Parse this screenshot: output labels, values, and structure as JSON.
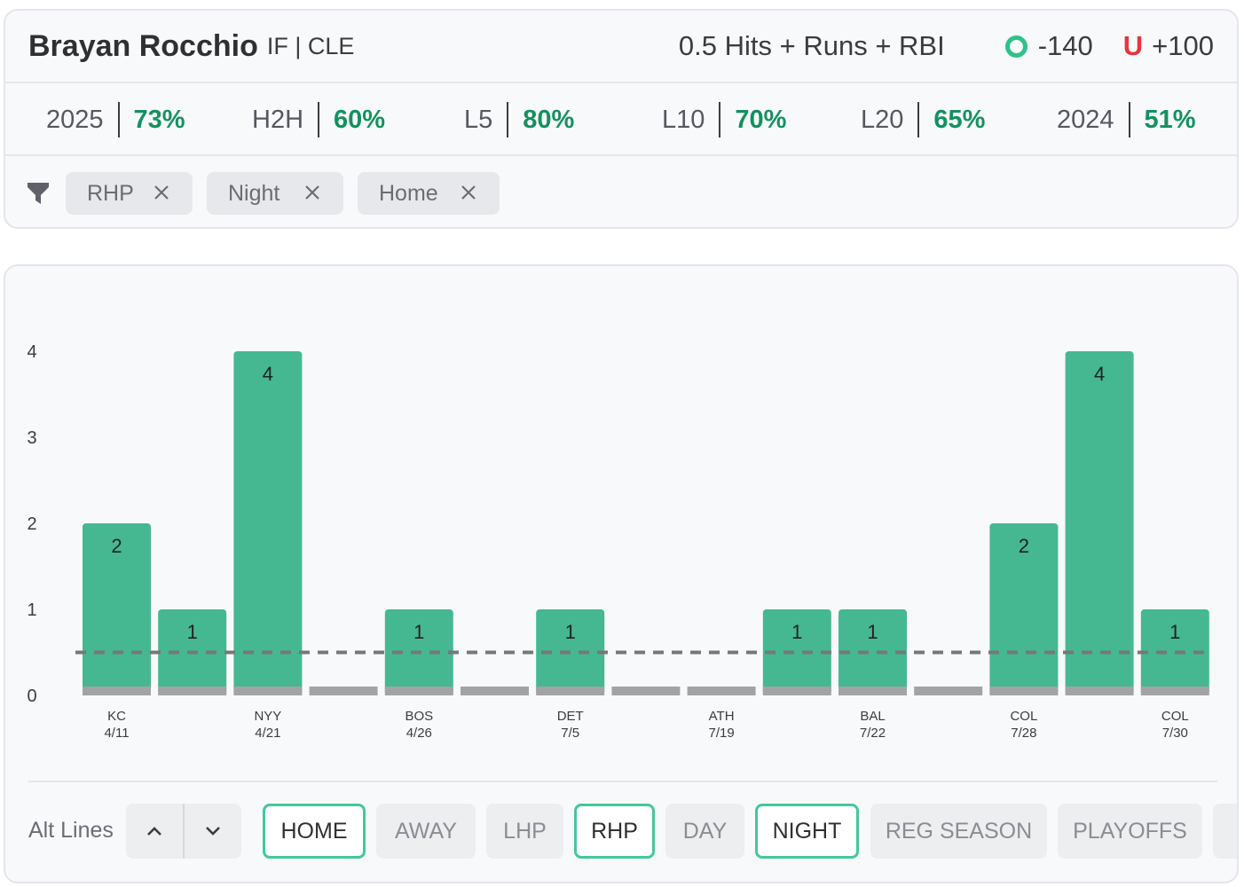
{
  "player": {
    "name": "Brayan Rocchio",
    "info": "IF | CLE"
  },
  "prop": {
    "market": "0.5 Hits + Runs + RBI",
    "over_symbol": "O",
    "over_odds": "-140",
    "under_symbol": "U",
    "under_odds": "+100"
  },
  "stats": [
    {
      "label": "2025",
      "pct": "73%"
    },
    {
      "label": "H2H",
      "pct": "60%"
    },
    {
      "label": "L5",
      "pct": "80%"
    },
    {
      "label": "L10",
      "pct": "70%"
    },
    {
      "label": "L20",
      "pct": "65%"
    },
    {
      "label": "2024",
      "pct": "51%"
    }
  ],
  "filters": [
    "RHP",
    "Night",
    "Home"
  ],
  "alt_lines_label": "Alt Lines",
  "filter_buttons": [
    {
      "label": "HOME",
      "active": true
    },
    {
      "label": "AWAY",
      "active": false
    },
    {
      "label": "LHP",
      "active": false
    },
    {
      "label": "RHP",
      "active": true
    },
    {
      "label": "DAY",
      "active": false
    },
    {
      "label": "NIGHT",
      "active": true
    },
    {
      "label": "REG SEASON",
      "active": false
    },
    {
      "label": "PLAYOFFS",
      "active": false
    }
  ],
  "colors": {
    "bar": "#45b891",
    "zero_bar": "#a3a3a3",
    "line": "#777777",
    "pct_green": "#14915e",
    "over": "#2fc289",
    "under": "#e6363f",
    "active_border": "#45c79a"
  },
  "chart_data": {
    "type": "bar",
    "title": "",
    "xlabel": "",
    "ylabel": "",
    "ylim": [
      0,
      4
    ],
    "yticks": [
      0,
      1,
      2,
      3,
      4
    ],
    "line_value": 0.5,
    "categories": [
      "KC 4/11",
      "",
      "NYY 4/21",
      "",
      "BOS 4/26",
      "",
      "DET 7/5",
      "",
      "ATH 7/19",
      "",
      "BAL 7/22",
      "",
      "COL 7/28",
      "",
      "COL 7/30"
    ],
    "opponents": [
      "KC",
      "",
      "NYY",
      "",
      "BOS",
      "",
      "DET",
      "",
      "ATH",
      "",
      "BAL",
      "",
      "COL",
      "",
      "COL"
    ],
    "dates": [
      "4/11",
      "",
      "4/21",
      "",
      "4/26",
      "",
      "7/5",
      "",
      "7/19",
      "",
      "7/22",
      "",
      "7/28",
      "",
      "7/30"
    ],
    "values": [
      2,
      1,
      4,
      0,
      1,
      0,
      1,
      0,
      0,
      1,
      1,
      0,
      2,
      4,
      1
    ]
  }
}
